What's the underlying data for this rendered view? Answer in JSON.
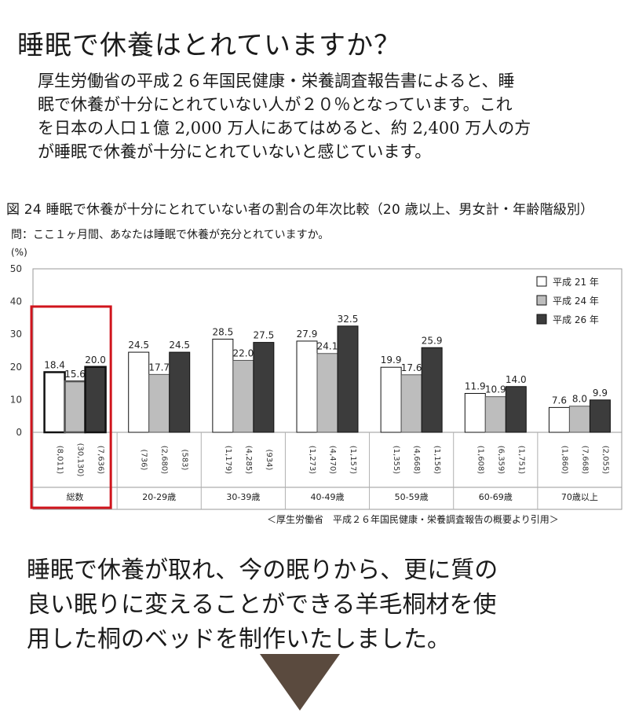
{
  "header": {
    "title": "睡眠で休養はとれていますか？",
    "intro_lines": [
      "厚生労働省の平成２６年国民健康・栄養調査報告書によると、睡",
      "眠で休養が十分にとれていない人が２０％となっています。これ",
      "を日本の人口１億 2,000 万人にあてはめると、約 2,400 万人の方",
      "が睡眠で休養が十分にとれていないと感じています。"
    ]
  },
  "figure": {
    "title": "図 24  睡眠で休養が十分にとれていない者の割合の年次比較（20 歳以上、男女計・年齢階級別）",
    "question": "問：ここ１ヶ月間、あなたは睡眠で休養が充分とれていますか。",
    "y_unit": "(%)",
    "source": "＜厚生労働省　平成２６年国民健康・栄養調査報告の概要より引用＞"
  },
  "chart_data": {
    "type": "bar",
    "categories": [
      "総数",
      "20-29歳",
      "30-39歳",
      "40-49歳",
      "50-59歳",
      "60-69歳",
      "70歳以上"
    ],
    "series": [
      {
        "name": "平成 21 年",
        "values": [
          18.4,
          24.5,
          28.5,
          27.9,
          19.9,
          11.9,
          7.6
        ],
        "n": [
          "(8,011)",
          "(736)",
          "(1,179)",
          "(1,273)",
          "(1,355)",
          "(1,608)",
          "(1,860)"
        ],
        "color": "#ffffff"
      },
      {
        "name": "平成 24 年",
        "values": [
          15.6,
          17.7,
          22.0,
          24.1,
          17.6,
          10.9,
          8.0
        ],
        "n": [
          "(30,130)",
          "(2,680)",
          "(4,285)",
          "(4,470)",
          "(4,668)",
          "(6,359)",
          "(7,668)"
        ],
        "color": "#bdbdbd"
      },
      {
        "name": "平成 26 年",
        "values": [
          20.0,
          24.5,
          27.5,
          32.5,
          25.9,
          14.0,
          9.9
        ],
        "n": [
          "(7,636)",
          "(583)",
          "(934)",
          "(1,157)",
          "(1,156)",
          "(1,751)",
          "(2,055)"
        ],
        "color": "#3c3c3c"
      }
    ],
    "yticks": [
      0,
      10,
      20,
      30,
      40,
      50
    ],
    "ylim": [
      0,
      50
    ],
    "grid": false,
    "legend": "top-right",
    "highlight_category": "総数",
    "highlight_color": "#d0141c"
  },
  "closing": {
    "lines": [
      "睡眠で休養が取れ、今の眠りから、更に質の",
      "良い眠りに変えることができる羊毛桐材を使",
      "用した桐のベッドを制作いたしました。"
    ],
    "arrow_color": "#5a4a3e"
  }
}
